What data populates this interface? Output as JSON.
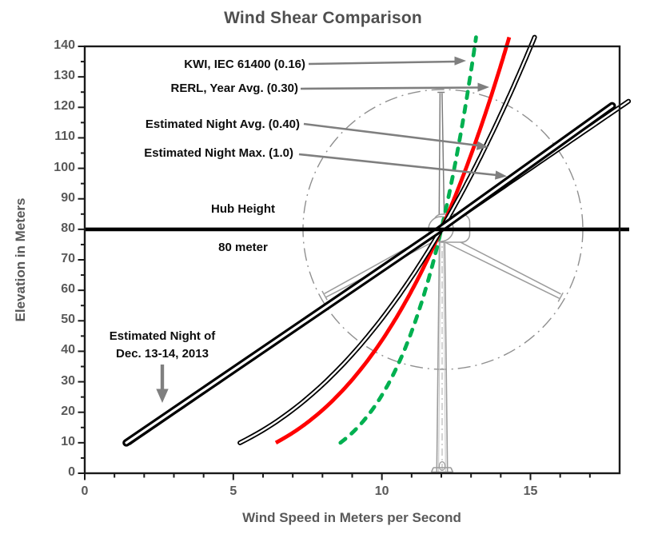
{
  "title": "Wind Shear Comparison",
  "axes": {
    "x": {
      "label": "Wind Speed in Meters per Second",
      "min": 0,
      "max": 18,
      "major_ticks": [
        0,
        5,
        10,
        15
      ],
      "minor_step": 1
    },
    "y": {
      "label": "Elevation in Meters",
      "min": 0,
      "max": 140,
      "major_ticks": [
        0,
        10,
        20,
        30,
        40,
        50,
        60,
        70,
        80,
        90,
        100,
        110,
        120,
        130,
        140
      ],
      "minor_step": 5
    }
  },
  "annotations": {
    "kwi_label": "KWI, IEC 61400 (0.16)",
    "rerl_label": "RERL, Year Avg. (0.30)",
    "night_avg_label": "Estimated Night Avg. (0.40)",
    "night_max_label": "Estimated Night Max. (1.0)",
    "hub_height_label": "Hub Height",
    "hub_height_value": "80 meter",
    "dec_night_label_line1": "Estimated Night of",
    "dec_night_label_line2": "Dec. 13-14, 2013"
  },
  "chart_data": {
    "type": "line",
    "title": "Wind Shear Comparison",
    "xlabel": "Wind Speed in Meters per Second",
    "ylabel": "Elevation in Meters",
    "xlim": [
      0,
      18
    ],
    "ylim": [
      0,
      140
    ],
    "grid": false,
    "legend_position": "annotated-arrows-upper-left",
    "hub": {
      "height_m": 80,
      "wind_speed_at_hub_ms": 12
    },
    "series": [
      {
        "name": "KWI, IEC 61400",
        "shear_exponent": 0.16,
        "model": "power",
        "style": "dashed",
        "color": "#00B050",
        "h_range": [
          10,
          140
        ],
        "profile_h_m": [
          10,
          20,
          30,
          40,
          50,
          60,
          70,
          80,
          90,
          100,
          110,
          120,
          130,
          140
        ],
        "profile_v_ms": [
          8.6,
          9.61,
          10.26,
          10.74,
          11.13,
          11.46,
          11.75,
          12.0,
          12.23,
          12.44,
          12.63,
          12.8,
          12.97,
          13.12
        ]
      },
      {
        "name": "RERL, Year Avg.",
        "shear_exponent": 0.3,
        "model": "power",
        "style": "solid",
        "color": "#FF0000",
        "h_range": [
          10,
          140
        ],
        "profile_h_m": [
          10,
          20,
          30,
          40,
          50,
          60,
          70,
          80,
          90,
          100,
          110,
          120,
          130,
          140
        ],
        "profile_v_ms": [
          6.43,
          7.92,
          8.94,
          9.75,
          10.42,
          11.01,
          11.53,
          12.0,
          12.43,
          12.83,
          13.2,
          13.55,
          13.88,
          14.19
        ]
      },
      {
        "name": "Estimated Night Avg.",
        "shear_exponent": 0.4,
        "model": "power",
        "style": "double",
        "color": "#000000",
        "h_range": [
          10,
          140
        ],
        "profile_h_m": [
          10,
          20,
          30,
          40,
          50,
          60,
          70,
          80,
          90,
          100,
          110,
          120,
          130,
          140
        ],
        "profile_v_ms": [
          5.22,
          6.89,
          8.11,
          9.09,
          9.94,
          10.7,
          11.38,
          12.0,
          12.58,
          13.12,
          13.63,
          14.11,
          14.57,
          15.01
        ]
      },
      {
        "name": "Estimated Night Max.",
        "shear_exponent": 1.0,
        "model": "power",
        "style": "double",
        "color": "#000000",
        "h_range": [
          10,
          121
        ],
        "profile_h_m": [
          10,
          20,
          30,
          40,
          50,
          60,
          70,
          80,
          90,
          100,
          110,
          120
        ],
        "profile_v_ms": [
          1.5,
          3.0,
          4.5,
          6.0,
          7.5,
          9.0,
          10.5,
          12.0,
          13.5,
          15.0,
          16.5,
          18.0
        ]
      },
      {
        "name": "Estimated Night of Dec. 13-14, 2013",
        "model": "points",
        "style": "double-thick",
        "color": "#000000",
        "points": [
          [
            1.4,
            10
          ],
          [
            11.95,
            80
          ],
          [
            17.75,
            120.5
          ]
        ]
      }
    ]
  },
  "colors": {
    "accent_green": "#00B050",
    "accent_red": "#FF0000",
    "line_black": "#000000",
    "arrow_gray": "#7f7f7f",
    "axis_text": "#595959",
    "annotation_text": "#0d0d0d",
    "turbine_gray": "#9c9c9c"
  }
}
